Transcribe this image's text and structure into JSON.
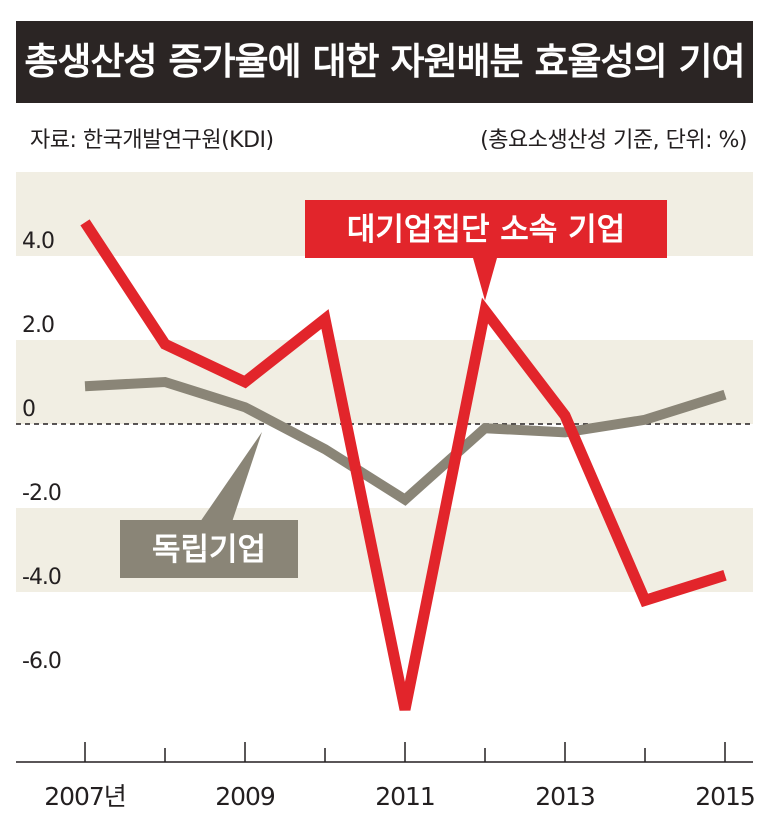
{
  "title": "총생산성 증가율에 대한 자원배분 효율성의 기여도",
  "source": "자료: 한국개발연구원(KDI)",
  "unit_note": "(총요소생산성 기준, 단위: %)",
  "colors": {
    "title_bg": "#2b2524",
    "band": "#f1eee3",
    "red_series": "#e2252b",
    "gray_series": "#8a8577",
    "axis": "#231f20"
  },
  "chart_data": {
    "type": "line",
    "title": "총생산성 증가율에 대한 자원배분 효율성의 기여도",
    "x": [
      2007,
      2008,
      2009,
      2010,
      2011,
      2012,
      2013,
      2014,
      2015
    ],
    "x_tick_labels": [
      "2007년",
      "2009",
      "2011",
      "2013",
      "2015"
    ],
    "x_tick_values": [
      2007,
      2009,
      2011,
      2013,
      2015
    ],
    "y_tick_labels": [
      "4.0",
      "2.0",
      "0",
      "-2.0",
      "-4.0",
      "-6.0"
    ],
    "y_tick_values": [
      4,
      2,
      0,
      -2,
      -4,
      -6
    ],
    "ylim": [
      -8,
      6
    ],
    "series": [
      {
        "name": "대기업집단 소속 기업",
        "color": "#e2252b",
        "values": [
          4.8,
          1.9,
          1.0,
          2.5,
          -6.8,
          2.7,
          0.2,
          -4.2,
          -3.6
        ]
      },
      {
        "name": "독립기업",
        "color": "#8a8577",
        "values": [
          0.9,
          1.0,
          0.4,
          -0.6,
          -1.8,
          -0.1,
          -0.2,
          0.1,
          0.7
        ]
      }
    ]
  }
}
